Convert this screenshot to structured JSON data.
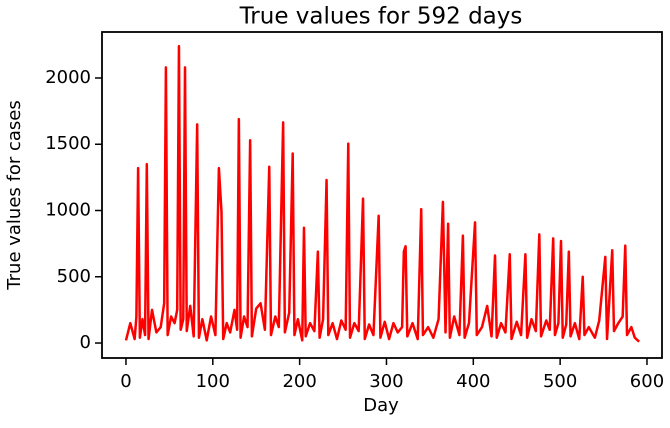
{
  "chart_data": {
    "type": "line",
    "title": "True values for 592 days",
    "xlabel": "Day",
    "ylabel": "True values for cases",
    "x": [
      0,
      5,
      10,
      12,
      14,
      16,
      19,
      22,
      24,
      26,
      30,
      35,
      40,
      44,
      46,
      48,
      52,
      56,
      59,
      61,
      63,
      66,
      68,
      70,
      74,
      78,
      82,
      84,
      88,
      93,
      98,
      103,
      107,
      110,
      112,
      116,
      120,
      125,
      128,
      130,
      132,
      136,
      140,
      143,
      145,
      150,
      155,
      160,
      165,
      167,
      172,
      176,
      181,
      183,
      188,
      192,
      194,
      198,
      203,
      205,
      207,
      212,
      217,
      221,
      223,
      227,
      231,
      233,
      238,
      243,
      248,
      253,
      256,
      258,
      263,
      268,
      273,
      275,
      280,
      285,
      291,
      293,
      298,
      303,
      308,
      313,
      318,
      320,
      322,
      324,
      330,
      336,
      340,
      342,
      348,
      354,
      360,
      365,
      368,
      371,
      373,
      378,
      384,
      388,
      390,
      395,
      402,
      404,
      410,
      416,
      421,
      425,
      427,
      432,
      437,
      442,
      444,
      450,
      455,
      460,
      462,
      467,
      472,
      476,
      478,
      484,
      488,
      492,
      494,
      498,
      501,
      503,
      507,
      510,
      512,
      517,
      522,
      526,
      528,
      533,
      540,
      545,
      552,
      554,
      560,
      562,
      567,
      572,
      575,
      577,
      582,
      586,
      591
    ],
    "series": [
      {
        "color": "#ff0000",
        "values": [
          20,
          150,
          30,
          200,
          1320,
          40,
          180,
          60,
          1350,
          30,
          250,
          80,
          120,
          300,
          2080,
          60,
          200,
          150,
          250,
          2240,
          100,
          180,
          2080,
          90,
          280,
          50,
          1650,
          40,
          180,
          20,
          200,
          60,
          1320,
          990,
          30,
          150,
          80,
          250,
          100,
          1690,
          40,
          200,
          120,
          1530,
          50,
          260,
          300,
          100,
          1330,
          60,
          200,
          120,
          1665,
          80,
          230,
          1430,
          60,
          180,
          20,
          870,
          50,
          150,
          90,
          690,
          40,
          180,
          1230,
          60,
          150,
          30,
          170,
          100,
          1505,
          40,
          150,
          90,
          1090,
          30,
          140,
          60,
          960,
          40,
          160,
          30,
          150,
          80,
          120,
          690,
          730,
          50,
          150,
          30,
          1010,
          60,
          120,
          40,
          180,
          1065,
          80,
          900,
          40,
          200,
          60,
          810,
          40,
          150,
          910,
          60,
          120,
          280,
          50,
          660,
          40,
          150,
          80,
          670,
          30,
          160,
          60,
          670,
          40,
          180,
          90,
          820,
          50,
          170,
          100,
          790,
          60,
          150,
          770,
          40,
          140,
          690,
          50,
          150,
          30,
          500,
          60,
          120,
          40,
          170,
          650,
          30,
          700,
          90,
          150,
          200,
          735,
          60,
          120,
          40,
          10
        ]
      }
    ],
    "xlim": [
      -27.6,
      617.3
    ],
    "ylim": [
      -113,
      2347
    ],
    "xticks": [
      0,
      100,
      200,
      300,
      400,
      500,
      600
    ],
    "yticks": [
      0,
      500,
      1000,
      1500,
      2000
    ]
  }
}
